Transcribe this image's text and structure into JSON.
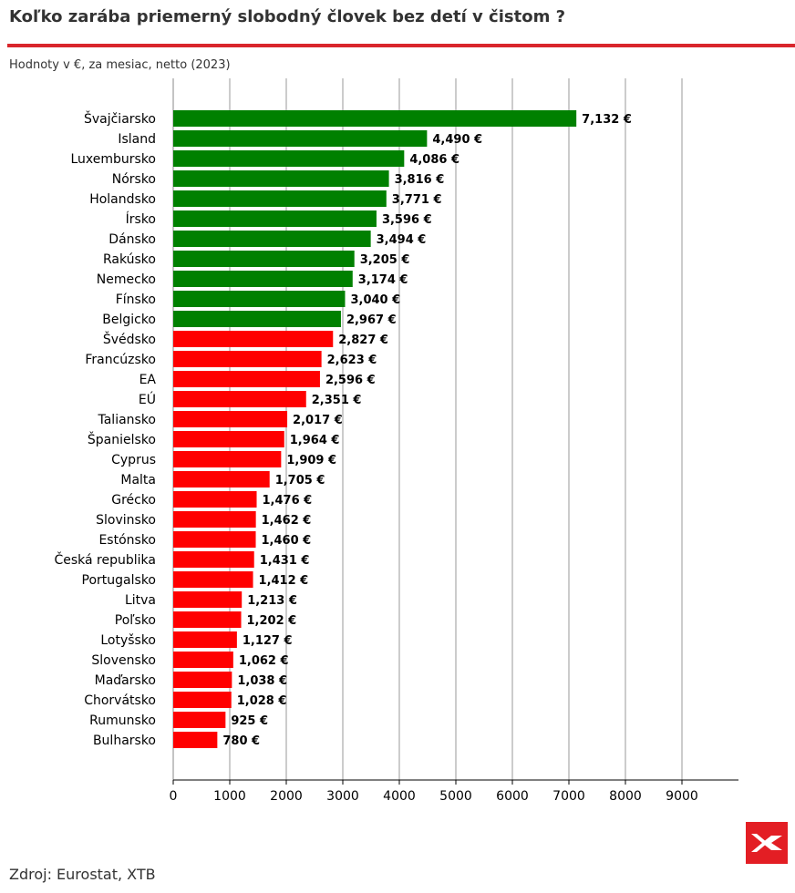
{
  "header": {
    "title": "Koľko zarába priemerný slobodný človek bez detí v čistom ?",
    "subtitle": "Hodnoty v €, za mesiac, netto (2023)"
  },
  "footer": {
    "source": "Zdroj: Eurostat, XTB"
  },
  "brand": {
    "logo_icon": "xtb-logo-icon",
    "logo_color": "#e31e24"
  },
  "colors": {
    "high": "#008000",
    "low": "#ff0000",
    "accent_line": "#d9262c",
    "grid": "#999999"
  },
  "chart_data": {
    "type": "bar",
    "orientation": "horizontal",
    "title": "Koľko zarába priemerný slobodný človek bez detí v čistom ?",
    "xlabel": "",
    "ylabel": "",
    "xlim": [
      0,
      10000
    ],
    "xticks": [
      0,
      1000,
      2000,
      3000,
      4000,
      5000,
      6000,
      7000,
      8000,
      9000
    ],
    "grid": "vertical",
    "value_suffix": " €",
    "categories": [
      "Švajčiarsko",
      "Island",
      "Luxembursko",
      "Nórsko",
      "Holandsko",
      "Írsko",
      "Dánsko",
      "Rakúsko",
      "Nemecko",
      "Fínsko",
      "Belgicko",
      "Švédsko",
      "Francúzsko",
      "EA",
      "EÚ",
      "Taliansko",
      "Španielsko",
      "Cyprus",
      "Malta",
      "Grécko",
      "Slovinsko",
      "Estónsko",
      "Česká republika",
      "Portugalsko",
      "Litva",
      "Poľsko",
      "Lotyšsko",
      "Slovensko",
      "Maďarsko",
      "Chorvátsko",
      "Rumunsko",
      "Bulharsko"
    ],
    "values": [
      7132,
      4490,
      4086,
      3816,
      3771,
      3596,
      3494,
      3205,
      3174,
      3040,
      2967,
      2827,
      2623,
      2596,
      2351,
      2017,
      1964,
      1909,
      1705,
      1476,
      1462,
      1460,
      1431,
      1412,
      1213,
      1202,
      1127,
      1062,
      1038,
      1028,
      925,
      780
    ],
    "labels": [
      "7,132 €",
      "4,490 €",
      "4,086 €",
      "3,816 €",
      "3,771 €",
      "3,596 €",
      "3,494 €",
      "3,205 €",
      "3,174 €",
      "3,040 €",
      "2,967 €",
      "2,827 €",
      "2,623 €",
      "2,596 €",
      "2,351 €",
      "2,017 €",
      "1,964 €",
      "1,909 €",
      "1,705 €",
      "1,476 €",
      "1,462 €",
      "1,460 €",
      "1,431 €",
      "1,412 €",
      "1,213 €",
      "1,202 €",
      "1,127 €",
      "1,062 €",
      "1,038 €",
      "1,028 €",
      "925 €",
      "780 €"
    ],
    "color_groups": [
      "high",
      "high",
      "high",
      "high",
      "high",
      "high",
      "high",
      "high",
      "high",
      "high",
      "high",
      "low",
      "low",
      "low",
      "low",
      "low",
      "low",
      "low",
      "low",
      "low",
      "low",
      "low",
      "low",
      "low",
      "low",
      "low",
      "low",
      "low",
      "low",
      "low",
      "low",
      "low"
    ]
  }
}
